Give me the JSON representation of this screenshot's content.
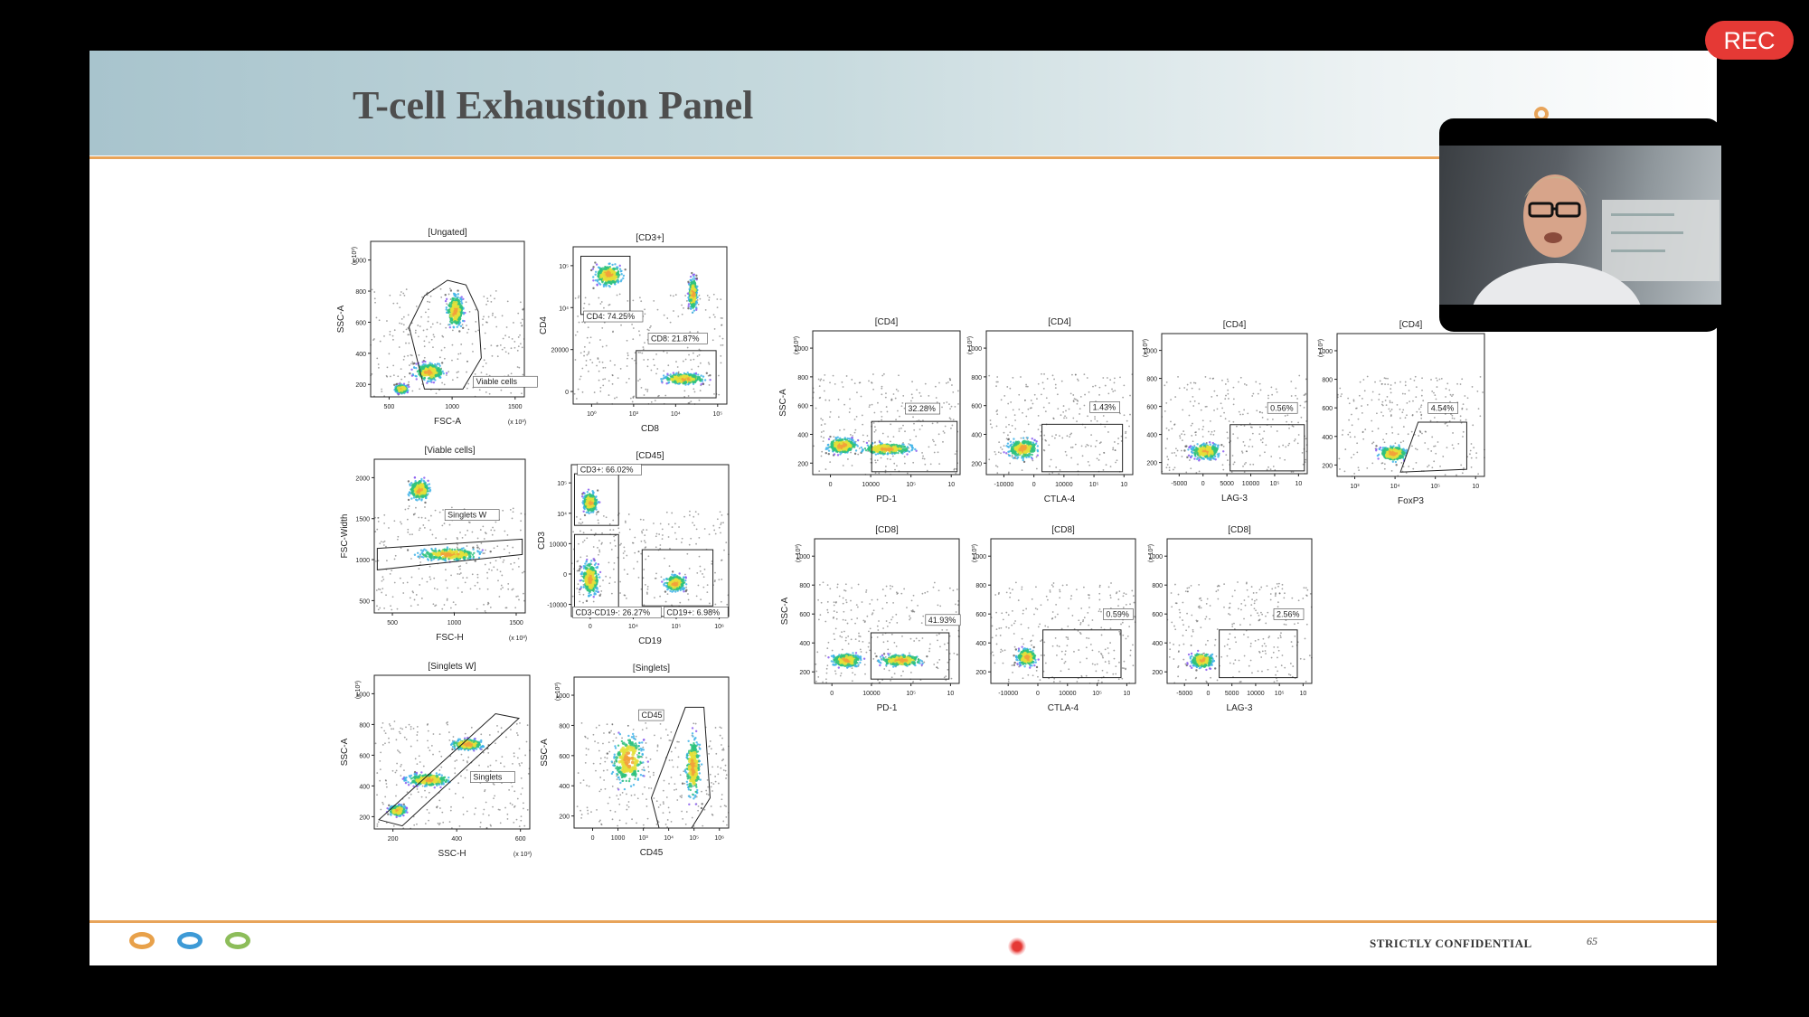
{
  "recording": {
    "label": "REC"
  },
  "slide": {
    "title": "T-cell Exhaustion Panel",
    "footer_text": "STRICTLY CONFIDENTIAL",
    "page_number": "65",
    "footer_ring_colors": [
      "#e8a14a",
      "#3d9ad6",
      "#8dbd5a"
    ]
  },
  "plots": [
    {
      "header": "[Ungated]",
      "xlabel": "FSC-A",
      "ylabel": "SSC-A",
      "scale": "(x 10³)",
      "xscale": "(x 10³)",
      "yticks": [
        "1000",
        "800",
        "600",
        "400",
        "200"
      ],
      "xticks": [
        "500",
        "1000",
        "1500"
      ],
      "gates": [
        "Viable cells"
      ]
    },
    {
      "header": "[CD3+]",
      "xlabel": "CD8",
      "ylabel": "CD4",
      "scale": "",
      "xscale": "",
      "yticks": [
        "10⁵",
        "10⁴",
        "20000",
        "0"
      ],
      "xticks": [
        "10⁰",
        "10³",
        "10⁴",
        "10⁵"
      ],
      "gates": [
        "CD4: 74.25%",
        "CD8: 21.87%"
      ]
    },
    {
      "header": "[Viable cells]",
      "xlabel": "FSC-H",
      "ylabel": "FSC-Width",
      "scale": "",
      "xscale": "(x 10³)",
      "yticks": [
        "2000",
        "1500",
        "1000",
        "500"
      ],
      "xticks": [
        "500",
        "1000",
        "1500"
      ],
      "gates": [
        "Singlets W"
      ]
    },
    {
      "header": "[CD45]",
      "xlabel": "CD19",
      "ylabel": "CD3",
      "scale": "",
      "xscale": "",
      "yticks": [
        "10⁵",
        "10⁴",
        "10000",
        "0",
        "-10000"
      ],
      "xticks": [
        "0",
        "10⁴",
        "10⁵",
        "10⁶"
      ],
      "gates": [
        "CD3+: 66.02%",
        "CD3-CD19-: 26.27%",
        "CD19+: 6.98%"
      ]
    },
    {
      "header": "[Singlets W]",
      "xlabel": "SSC-H",
      "ylabel": "SSC-A",
      "scale": "(x 10³)",
      "xscale": "(x 10³)",
      "yticks": [
        "1000",
        "800",
        "600",
        "400",
        "200"
      ],
      "xticks": [
        "200",
        "400",
        "600"
      ],
      "gates": [
        "Singlets"
      ]
    },
    {
      "header": "[Singlets]",
      "xlabel": "CD45",
      "ylabel": "SSC-A",
      "scale": "(x 10³)",
      "xscale": "",
      "yticks": [
        "1000",
        "800",
        "600",
        "400",
        "200"
      ],
      "xticks": [
        "0",
        "1000",
        "10³",
        "10⁴",
        "10⁵",
        "10⁶"
      ],
      "gates": [
        "CD45"
      ]
    },
    {
      "header": "[CD4]",
      "xlabel": "PD-1",
      "ylabel": "SSC-A",
      "scale": "(x 10³)",
      "xscale": "",
      "yticks": [
        "1000",
        "800",
        "600",
        "400",
        "200"
      ],
      "xticks": [
        "0",
        "10000",
        "10⁵",
        "10"
      ],
      "gates": [
        "32.28%"
      ]
    },
    {
      "header": "[CD4]",
      "xlabel": "CTLA-4",
      "ylabel": "",
      "scale": "(x 10³)",
      "xscale": "",
      "yticks": [
        "1000",
        "800",
        "600",
        "400",
        "200"
      ],
      "xticks": [
        "-10000",
        "0",
        "10000",
        "10⁵",
        "10"
      ],
      "gates": [
        "1.43%"
      ]
    },
    {
      "header": "[CD4]",
      "xlabel": "LAG-3",
      "ylabel": "",
      "scale": "(x 10³)",
      "xscale": "",
      "yticks": [
        "1000",
        "800",
        "600",
        "400",
        "200"
      ],
      "xticks": [
        "-5000",
        "0",
        "5000",
        "10000",
        "10⁵",
        "10"
      ],
      "gates": [
        "0.56%"
      ]
    },
    {
      "header": "[CD4]",
      "xlabel": "FoxP3",
      "ylabel": "",
      "scale": "(x 10³)",
      "xscale": "",
      "yticks": [
        "1000",
        "800",
        "600",
        "400",
        "200"
      ],
      "xticks": [
        "10³",
        "10⁴",
        "10⁵",
        "10"
      ],
      "gates": [
        "4.54%"
      ]
    },
    {
      "header": "[CD8]",
      "xlabel": "PD-1",
      "ylabel": "SSC-A",
      "scale": "(x 10³)",
      "xscale": "",
      "yticks": [
        "1000",
        "800",
        "600",
        "400",
        "200"
      ],
      "xticks": [
        "0",
        "10000",
        "10⁵",
        "10"
      ],
      "gates": [
        "41.93%"
      ]
    },
    {
      "header": "[CD8]",
      "xlabel": "CTLA-4",
      "ylabel": "",
      "scale": "(x 10³)",
      "xscale": "",
      "yticks": [
        "1000",
        "800",
        "600",
        "400",
        "200"
      ],
      "xticks": [
        "-10000",
        "0",
        "10000",
        "10⁵",
        "10"
      ],
      "gates": [
        "0.59%"
      ]
    },
    {
      "header": "[CD8]",
      "xlabel": "LAG-3",
      "ylabel": "",
      "scale": "(x 10³)",
      "xscale": "",
      "yticks": [
        "1000",
        "800",
        "600",
        "400",
        "200"
      ],
      "xticks": [
        "-5000",
        "0",
        "5000",
        "10000",
        "10⁵",
        "10"
      ],
      "gates": [
        "2.56%"
      ]
    }
  ]
}
